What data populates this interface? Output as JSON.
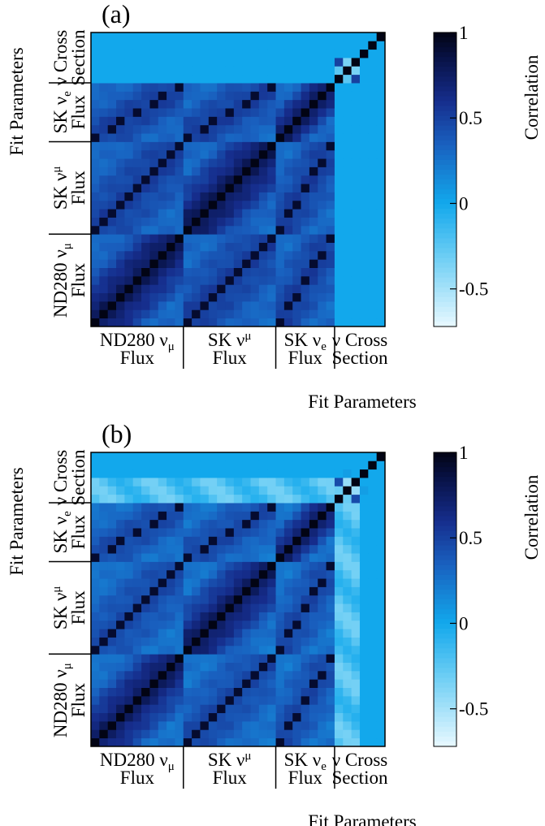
{
  "chart_data": [
    {
      "type": "heatmap",
      "panel_label": "(a)",
      "xlabel": "Fit Parameters",
      "ylabel": "Fit Parameters",
      "colorbar": {
        "title": "Correlation",
        "ticks": [
          "1",
          "0.5",
          "0",
          "-0.5"
        ],
        "tick_values": [
          1,
          0.5,
          0,
          -0.5
        ],
        "range": [
          -0.72,
          1.0
        ]
      },
      "groups": [
        {
          "line1": "ND280 ν",
          "sub": "μ",
          "subtype": "sub",
          "line2": "Flux",
          "size": 11
        },
        {
          "line1": "SK ν",
          "sub": "μ",
          "subtype": "sup",
          "line2": "Flux",
          "size": 11
        },
        {
          "line1": "SK ν",
          "sub": "e",
          "subtype": "sub",
          "line2": "Flux",
          "size": 7
        },
        {
          "line1": "ν Cross",
          "sub": "",
          "subtype": "none",
          "line2": "Section",
          "size": 6
        }
      ],
      "n_params": 35,
      "values_description_free": true,
      "flux_block_correlation": {
        "diag": 1.0,
        "near": 0.85,
        "far": 0.3,
        "cross_block": 0.55
      },
      "flux_xsec_correlation": 0.0,
      "xsec_values": [
        [
          1.0,
          -0.25,
          0.5,
          0.0,
          0.0,
          0.0
        ],
        [
          -0.25,
          1.0,
          -0.35,
          0.0,
          0.0,
          0.0
        ],
        [
          0.5,
          -0.35,
          1.0,
          0.0,
          0.0,
          0.0
        ],
        [
          0.0,
          0.0,
          0.0,
          1.0,
          0.0,
          0.0
        ],
        [
          0.0,
          0.0,
          0.0,
          0.0,
          1.0,
          0.0
        ],
        [
          0.0,
          0.0,
          0.0,
          0.0,
          0.0,
          1.0
        ]
      ]
    },
    {
      "type": "heatmap",
      "panel_label": "(b)",
      "xlabel": "Fit Parameters",
      "ylabel": "Fit Parameters",
      "colorbar": {
        "title": "Correlation",
        "ticks": [
          "1",
          "0.5",
          "0",
          "-0.5"
        ],
        "tick_values": [
          1,
          0.5,
          0,
          -0.5
        ],
        "range": [
          -0.72,
          1.0
        ]
      },
      "groups": [
        {
          "line1": "ND280 ν",
          "sub": "μ",
          "subtype": "sub",
          "line2": "Flux",
          "size": 11
        },
        {
          "line1": "SK ν",
          "sub": "μ",
          "subtype": "sup",
          "line2": "Flux",
          "size": 11
        },
        {
          "line1": "SK ν",
          "sub": "e",
          "subtype": "sub",
          "line2": "Flux",
          "size": 7
        },
        {
          "line1": "ν Cross",
          "sub": "",
          "subtype": "none",
          "line2": "Section",
          "size": 6
        }
      ],
      "n_params": 35,
      "flux_block_correlation": {
        "diag": 1.0,
        "near": 0.82,
        "far": 0.25,
        "cross_block": 0.5
      },
      "flux_xsec_correlation": -0.35,
      "xsec_values": [
        [
          1.0,
          -0.3,
          0.45,
          0.0,
          0.0,
          0.0
        ],
        [
          -0.3,
          1.0,
          -0.45,
          0.05,
          0.0,
          0.0
        ],
        [
          0.45,
          -0.45,
          1.0,
          0.0,
          0.0,
          0.0
        ],
        [
          0.0,
          0.05,
          0.0,
          1.0,
          0.0,
          0.0
        ],
        [
          0.0,
          0.0,
          0.0,
          0.0,
          1.0,
          0.0
        ],
        [
          0.0,
          0.0,
          0.0,
          0.0,
          0.0,
          1.0
        ]
      ]
    }
  ]
}
